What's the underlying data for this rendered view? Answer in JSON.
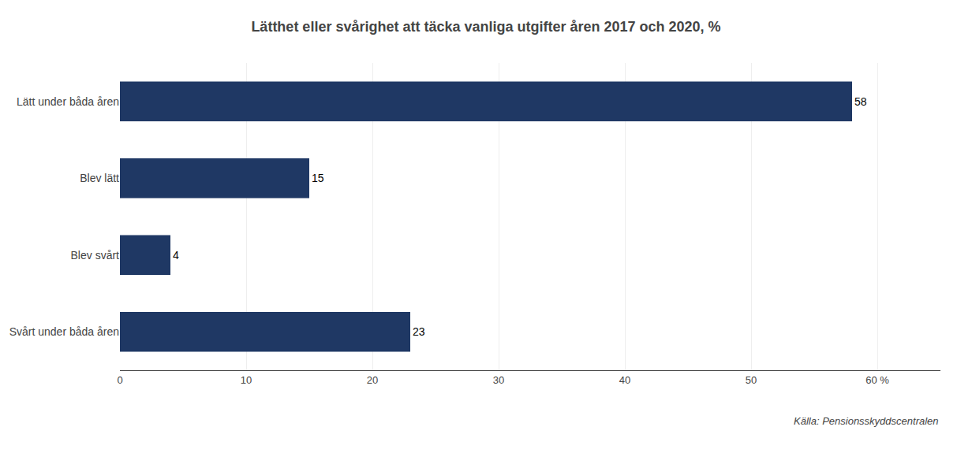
{
  "chart_data": {
    "type": "bar",
    "orientation": "horizontal",
    "title": "Lätthet eller svårighet att täcka vanliga utgifter åren 2017 och 2020, %",
    "categories": [
      "Lätt under båda åren",
      "Blev lätt",
      "Blev svårt",
      "Svårt under båda åren"
    ],
    "values": [
      58,
      15,
      4,
      23
    ],
    "color": "#1F3864",
    "xlim": [
      0,
      65
    ],
    "xticks": [
      0,
      10,
      20,
      30,
      40,
      50,
      {
        "value": 60,
        "label": "60 %"
      }
    ],
    "grid": true,
    "data_labels": true,
    "annotations": [
      "Källa: Pensionsskyddscentralen"
    ]
  }
}
